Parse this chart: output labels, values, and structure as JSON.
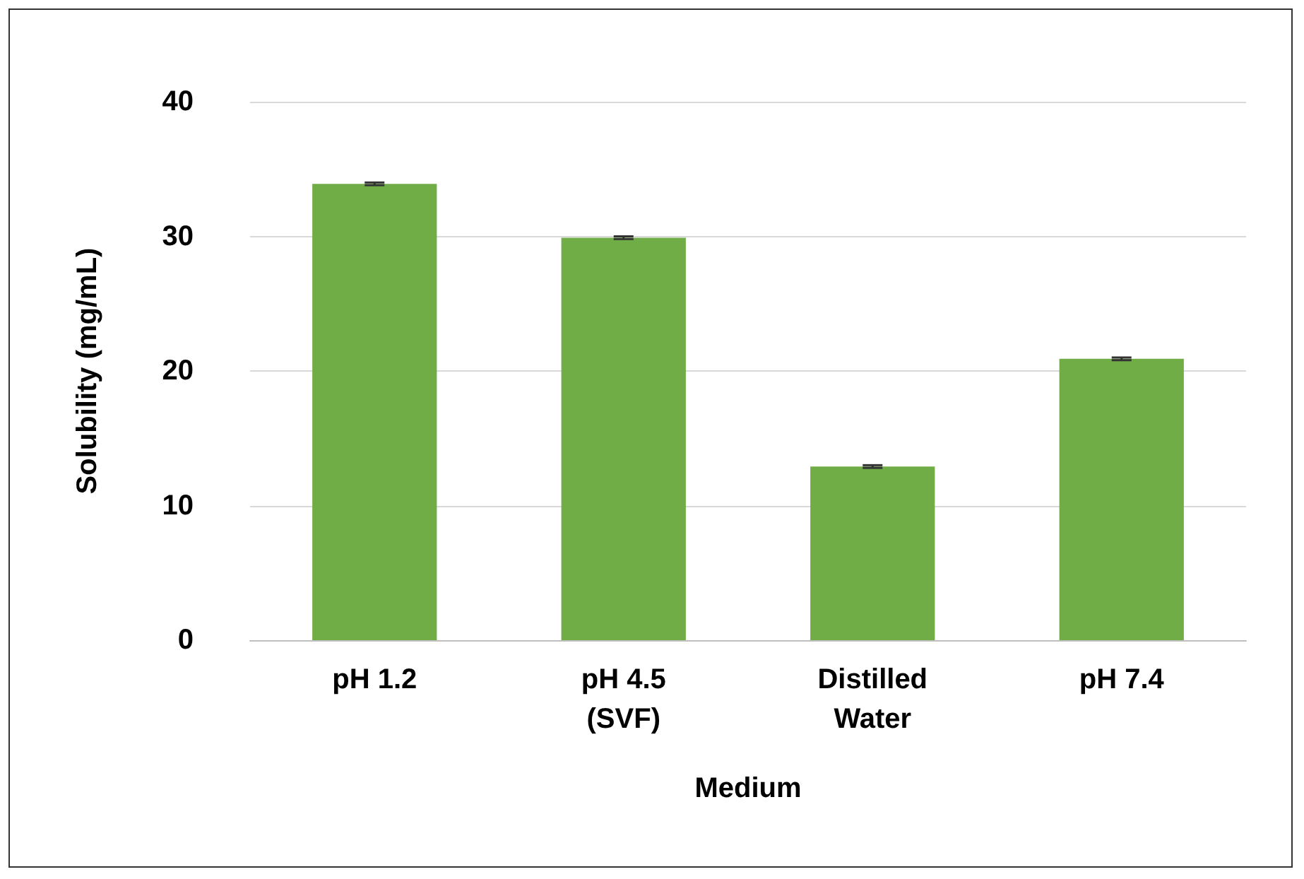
{
  "chart_data": {
    "type": "bar",
    "xlabel": "Medium",
    "ylabel": "Solubility (mg/mL)",
    "categories": [
      "pH 1.2",
      "pH 4.5\n(SVF)",
      "Distilled\nWater",
      "pH 7.4"
    ],
    "values": [
      33.9,
      29.9,
      12.9,
      20.9
    ],
    "errors": [
      0.1,
      0.1,
      0.1,
      0.1
    ],
    "color": "#70ad47",
    "ylim": [
      0,
      40
    ],
    "yticks": [
      0,
      10,
      20,
      30,
      40
    ],
    "grid": "y"
  }
}
